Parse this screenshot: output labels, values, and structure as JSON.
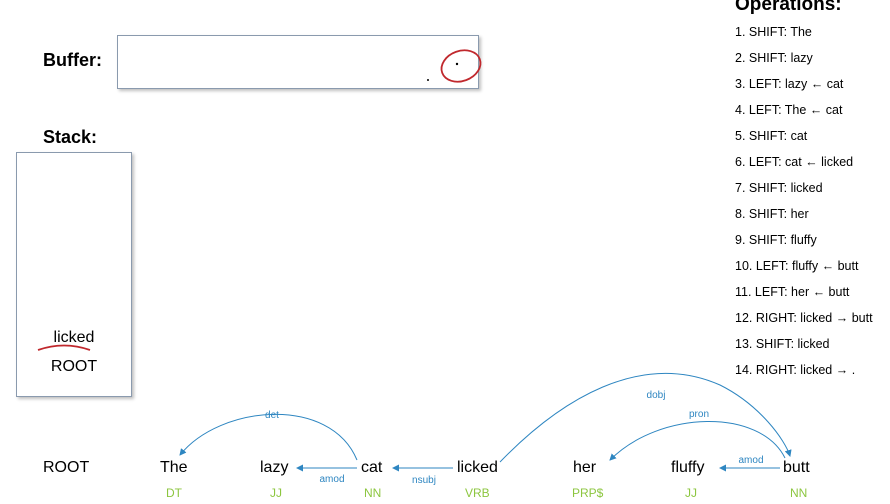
{
  "buffer": {
    "label": "Buffer:",
    "contents": ""
  },
  "stack": {
    "label": "Stack:",
    "items": [
      "licked",
      "ROOT"
    ]
  },
  "operations": {
    "title": "Operations:",
    "items": [
      "1. SHIFT: The",
      "2. SHIFT: lazy",
      "3. LEFT: lazy ← cat",
      "4. LEFT: The ← cat",
      "5. SHIFT: cat",
      "6. LEFT: cat ← licked",
      "7. SHIFT: licked",
      "8. SHIFT: her",
      "9. SHIFT: fluffy",
      "10. LEFT: fluffy ← butt",
      "11. LEFT: her ← butt",
      "12. RIGHT: licked → butt",
      "13. SHIFT: licked",
      "14. RIGHT: licked → ."
    ]
  },
  "sentence": {
    "words": [
      "ROOT",
      "The",
      "lazy",
      "cat",
      "licked",
      "her",
      "fluffy",
      "butt"
    ],
    "tags": [
      "",
      "DT",
      "JJ",
      "NN",
      "VRB",
      "PRP$",
      "JJ",
      "NN"
    ]
  },
  "arcs": [
    {
      "label": "det"
    },
    {
      "label": "amod"
    },
    {
      "label": "nsubj"
    },
    {
      "label": "dobj"
    },
    {
      "label": "pron"
    },
    {
      "label": "amod"
    }
  ],
  "colors": {
    "arc": "#2e86c1",
    "tag": "#8cc63f",
    "annotation": "#c0282d",
    "box_border": "#8a9aae"
  }
}
